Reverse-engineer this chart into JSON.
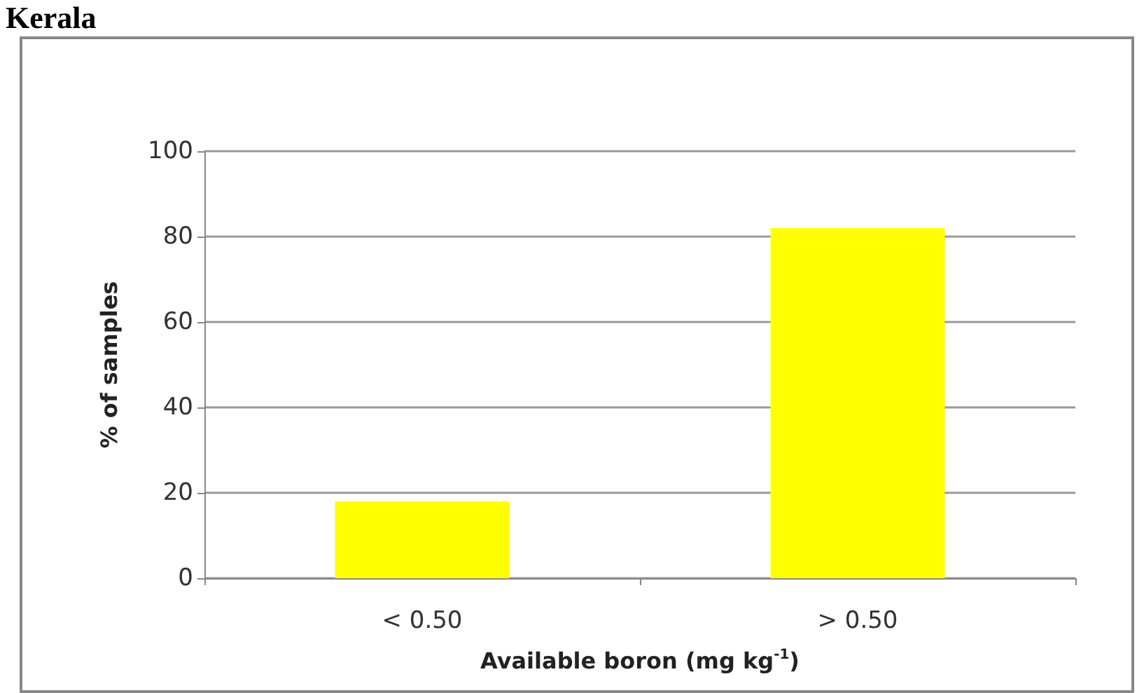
{
  "chart_data": {
    "type": "bar",
    "title": "Kerala",
    "categories": [
      "< 0.50",
      "> 0.50"
    ],
    "values": [
      18,
      82
    ],
    "color": "#ffff00",
    "xlabel": "Available boron (mg kg$^{-1}$)",
    "ylabel": "% of samples",
    "ylim": [
      0,
      100
    ],
    "yticks": [
      0,
      20,
      40,
      60,
      80,
      100
    ],
    "grid": "y"
  }
}
